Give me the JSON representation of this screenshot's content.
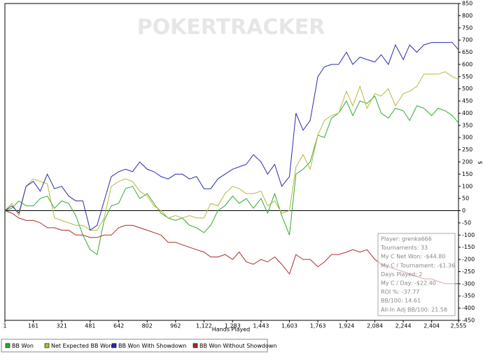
{
  "chart_data": {
    "type": "line",
    "watermark": "POKERTRACKER",
    "x_label": "Hands Played",
    "y_label": "$",
    "xlim": [
      1,
      2555
    ],
    "ylim": [
      -450,
      850
    ],
    "xticks": [
      1,
      161,
      321,
      481,
      642,
      802,
      962,
      {
        "value": 1122,
        "label": "1,122"
      },
      {
        "value": 1283,
        "label": "1,283"
      },
      {
        "value": 1443,
        "label": "1,443"
      },
      {
        "value": 1603,
        "label": "1,603"
      },
      {
        "value": 1763,
        "label": "1,763"
      },
      {
        "value": 1924,
        "label": "1,924"
      },
      {
        "value": 2084,
        "label": "2,084"
      },
      {
        "value": 2244,
        "label": "2,244"
      },
      {
        "value": 2404,
        "label": "2,404"
      },
      {
        "value": 2555,
        "label": "2,555"
      }
    ],
    "yticks": [
      -450,
      -400,
      -350,
      -300,
      -250,
      -200,
      -150,
      -100,
      -50,
      0,
      50,
      100,
      150,
      200,
      250,
      300,
      350,
      400,
      450,
      500,
      550,
      600,
      650,
      700,
      750,
      800,
      850
    ],
    "zero_line": true,
    "legend": "bottom",
    "x": [
      1,
      40,
      80,
      120,
      161,
      200,
      240,
      280,
      321,
      360,
      400,
      440,
      481,
      520,
      560,
      600,
      642,
      680,
      720,
      760,
      802,
      840,
      880,
      920,
      962,
      1000,
      1040,
      1080,
      1122,
      1160,
      1200,
      1240,
      1283,
      1320,
      1360,
      1400,
      1443,
      1480,
      1520,
      1560,
      1603,
      1640,
      1680,
      1720,
      1763,
      1800,
      1840,
      1880,
      1924,
      1960,
      2000,
      2040,
      2084,
      2120,
      2160,
      2200,
      2244,
      2280,
      2320,
      2360,
      2404,
      2440,
      2480,
      2520,
      2555
    ],
    "series": [
      {
        "name": "BB Won",
        "color": "#33aa33",
        "values": [
          0,
          10,
          40,
          20,
          20,
          50,
          60,
          10,
          40,
          30,
          -20,
          -100,
          -160,
          -180,
          -40,
          20,
          30,
          90,
          100,
          50,
          70,
          30,
          -10,
          -30,
          -40,
          -30,
          -60,
          -70,
          -90,
          -60,
          0,
          20,
          60,
          30,
          50,
          10,
          50,
          -10,
          70,
          -20,
          -100,
          150,
          170,
          200,
          310,
          300,
          380,
          400,
          450,
          390,
          450,
          440,
          470,
          400,
          380,
          420,
          410,
          370,
          430,
          420,
          390,
          420,
          410,
          390,
          360
        ]
      },
      {
        "name": "Net Expected BB Won",
        "color": "#b8b83a",
        "values": [
          0,
          30,
          -20,
          100,
          130,
          120,
          110,
          -30,
          -40,
          -50,
          -60,
          -60,
          -80,
          -80,
          -30,
          100,
          120,
          130,
          120,
          80,
          60,
          20,
          0,
          -30,
          -20,
          -30,
          -20,
          -30,
          -30,
          30,
          20,
          70,
          100,
          90,
          70,
          70,
          80,
          20,
          40,
          -10,
          0,
          180,
          230,
          170,
          310,
          370,
          390,
          400,
          490,
          430,
          510,
          420,
          480,
          470,
          500,
          430,
          480,
          490,
          510,
          560,
          560,
          560,
          570,
          550,
          540
        ]
      },
      {
        "name": "BB Won With Showdown",
        "color": "#2a2ab0",
        "values": [
          0,
          20,
          -10,
          100,
          120,
          80,
          150,
          90,
          100,
          60,
          40,
          40,
          -80,
          -60,
          40,
          140,
          160,
          170,
          160,
          200,
          170,
          160,
          140,
          130,
          150,
          150,
          130,
          140,
          90,
          90,
          130,
          150,
          170,
          180,
          190,
          230,
          200,
          150,
          190,
          100,
          140,
          400,
          330,
          370,
          550,
          590,
          600,
          600,
          650,
          600,
          630,
          620,
          610,
          640,
          600,
          680,
          620,
          680,
          650,
          680,
          690,
          690,
          690,
          690,
          660
        ]
      },
      {
        "name": "BB Won Without Showdown",
        "color": "#b02a2a",
        "values": [
          0,
          -10,
          -30,
          -40,
          -40,
          -50,
          -70,
          -70,
          -80,
          -80,
          -100,
          -100,
          -110,
          -110,
          -100,
          -100,
          -70,
          -60,
          -60,
          -70,
          -80,
          -90,
          -100,
          -130,
          -130,
          -140,
          -150,
          -160,
          -170,
          -190,
          -190,
          -180,
          -200,
          -170,
          -210,
          -220,
          -200,
          -210,
          -190,
          -220,
          -260,
          -180,
          -200,
          -200,
          -230,
          -210,
          -180,
          -180,
          -170,
          -160,
          -170,
          -160,
          -200,
          -220,
          -230,
          -240,
          -250,
          -260,
          -270,
          -280,
          -280,
          -290,
          -300,
          -300,
          -300
        ]
      }
    ],
    "stats_box": [
      "Player: grenka666",
      "Tournaments: 33",
      "My C Net Won: -$44.80",
      "My C / Tournament: -$1.36",
      "Days Played: 2",
      "My C / Day: -$22.40",
      "ROI %: -37.77",
      "BB/100: 14.61",
      "All-In Adj BB/100: 21.58"
    ]
  }
}
